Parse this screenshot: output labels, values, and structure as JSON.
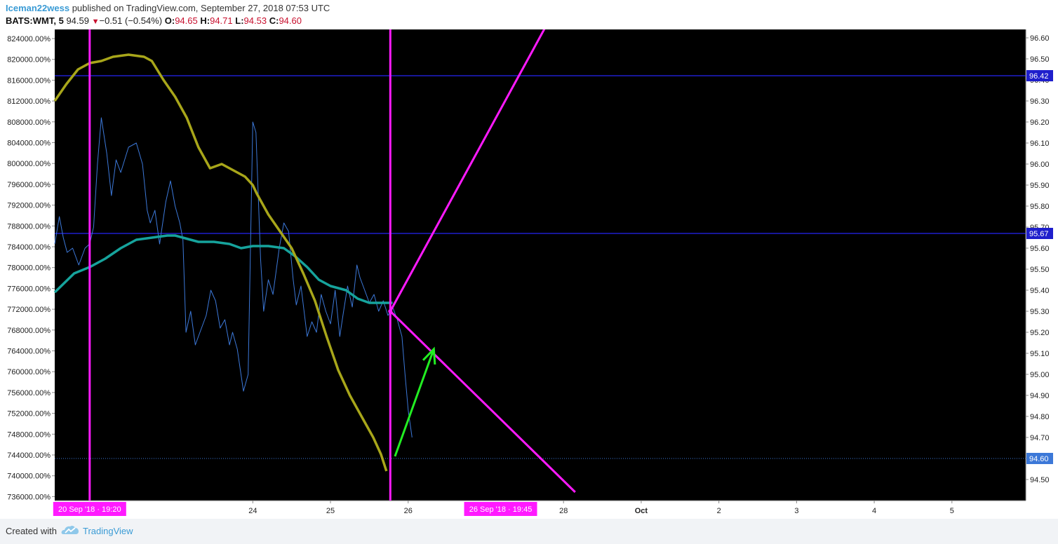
{
  "header": {
    "author": "Iceman22wess",
    "published": " published on TradingView.com, September 27, 2018 07:53 UTC",
    "symbol": "BATS:WMT, 5",
    "price": "94.59",
    "down_arrow": "▼",
    "change": "−0.51 (−0.54%)",
    "o_label": "O:",
    "o_value": "94.65",
    "h_label": "H:",
    "h_value": "94.71",
    "l_label": "L:",
    "l_value": "94.53",
    "c_label": "C:",
    "c_value": "94.60"
  },
  "footer": {
    "created_with": "Created with",
    "brand": "TradingView"
  },
  "colors": {
    "background": "#000000",
    "price_line": "#3c78d8",
    "ma_fast": "#16a39c",
    "ma_slow": "#a8a61a",
    "vertical_lines": "#ff1aff",
    "horizontal_lines": "#1f1fcc",
    "arrow": "#22ee22",
    "author": "#3a9bd5"
  },
  "chart_data": {
    "type": "line",
    "title": "",
    "left_axis": {
      "ticks": [
        "824000.00%",
        "820000.00%",
        "816000.00%",
        "812000.00%",
        "808000.00%",
        "804000.00%",
        "800000.00%",
        "796000.00%",
        "792000.00%",
        "788000.00%",
        "784000.00%",
        "780000.00%",
        "776000.00%",
        "772000.00%",
        "768000.00%",
        "764000.00%",
        "760000.00%",
        "756000.00%",
        "752000.00%",
        "748000.00%",
        "744000.00%",
        "740000.00%",
        "736000.00%"
      ]
    },
    "right_axis": {
      "ylim": [
        94.4,
        96.64
      ],
      "ticks": [
        "96.60",
        "96.50",
        "96.40",
        "96.30",
        "96.20",
        "96.10",
        "96.00",
        "95.90",
        "95.80",
        "95.70",
        "95.60",
        "95.50",
        "95.40",
        "95.30",
        "95.20",
        "95.10",
        "95.00",
        "94.90",
        "94.80",
        "94.70",
        "94.60",
        "94.50"
      ],
      "badges": [
        {
          "label": "96.42",
          "value": 96.42,
          "color": "#1f1fcc"
        },
        {
          "label": "95.67",
          "value": 95.67,
          "color": "#1f1fcc"
        },
        {
          "label": "94.60",
          "value": 94.6,
          "color": "#3c78d8"
        }
      ]
    },
    "x_axis": {
      "ticks": [
        {
          "label": "24",
          "t": 1
        },
        {
          "label": "25",
          "t": 2
        },
        {
          "label": "26",
          "t": 3
        },
        {
          "label": "28",
          "t": 5
        },
        {
          "label": "Oct",
          "t": 6,
          "bold": true
        },
        {
          "label": "2",
          "t": 7
        },
        {
          "label": "3",
          "t": 8
        },
        {
          "label": "4",
          "t": 9
        },
        {
          "label": "5",
          "t": 10
        }
      ],
      "time_badges": [
        {
          "label": "20 Sep '18 · 19:20",
          "t": -1.1
        },
        {
          "label": "26 Sep '18 · 19:45",
          "t": 4.19
        }
      ],
      "xlim": [
        -1.55,
        10.95
      ]
    },
    "series": [
      {
        "name": "",
        "role": "price",
        "points": [
          [
            -1.55,
            95.62
          ],
          [
            -1.49,
            95.75
          ],
          [
            -1.44,
            95.65
          ],
          [
            -1.39,
            95.58
          ],
          [
            -1.32,
            95.6
          ],
          [
            -1.24,
            95.52
          ],
          [
            -1.16,
            95.6
          ],
          [
            -1.1,
            95.62
          ],
          [
            -1.05,
            95.7
          ],
          [
            -1.0,
            96.0
          ],
          [
            -0.95,
            96.22
          ],
          [
            -0.88,
            96.05
          ],
          [
            -0.82,
            95.85
          ],
          [
            -0.76,
            96.02
          ],
          [
            -0.7,
            95.96
          ],
          [
            -0.6,
            96.08
          ],
          [
            -0.5,
            96.1
          ],
          [
            -0.42,
            96.0
          ],
          [
            -0.36,
            95.78
          ],
          [
            -0.32,
            95.72
          ],
          [
            -0.26,
            95.78
          ],
          [
            -0.2,
            95.62
          ],
          [
            -0.12,
            95.82
          ],
          [
            -0.06,
            95.92
          ],
          [
            0.0,
            95.8
          ],
          [
            0.06,
            95.72
          ],
          [
            0.1,
            95.64
          ],
          [
            0.14,
            95.2
          ],
          [
            0.2,
            95.3
          ],
          [
            0.26,
            95.14
          ],
          [
            0.32,
            95.2
          ],
          [
            0.4,
            95.28
          ],
          [
            0.46,
            95.4
          ],
          [
            0.52,
            95.35
          ],
          [
            0.58,
            95.22
          ],
          [
            0.64,
            95.26
          ],
          [
            0.7,
            95.14
          ],
          [
            0.74,
            95.2
          ],
          [
            0.8,
            95.12
          ],
          [
            0.84,
            95.02
          ],
          [
            0.88,
            94.92
          ],
          [
            0.94,
            95.0
          ],
          [
            1.0,
            96.2
          ],
          [
            1.04,
            96.15
          ],
          [
            1.1,
            95.55
          ],
          [
            1.14,
            95.3
          ],
          [
            1.2,
            95.45
          ],
          [
            1.26,
            95.38
          ],
          [
            1.34,
            95.6
          ],
          [
            1.4,
            95.72
          ],
          [
            1.46,
            95.68
          ],
          [
            1.52,
            95.45
          ],
          [
            1.56,
            95.33
          ],
          [
            1.62,
            95.42
          ],
          [
            1.7,
            95.18
          ],
          [
            1.76,
            95.25
          ],
          [
            1.82,
            95.2
          ],
          [
            1.88,
            95.38
          ],
          [
            1.94,
            95.3
          ],
          [
            2.0,
            95.24
          ],
          [
            2.06,
            95.4
          ],
          [
            2.12,
            95.18
          ],
          [
            2.16,
            95.28
          ],
          [
            2.22,
            95.42
          ],
          [
            2.28,
            95.32
          ],
          [
            2.34,
            95.52
          ],
          [
            2.38,
            95.46
          ],
          [
            2.44,
            95.4
          ],
          [
            2.5,
            95.34
          ],
          [
            2.56,
            95.38
          ],
          [
            2.62,
            95.3
          ],
          [
            2.68,
            95.35
          ],
          [
            2.74,
            95.28
          ],
          [
            2.8,
            95.32
          ],
          [
            2.86,
            95.26
          ],
          [
            2.92,
            95.18
          ],
          [
            2.96,
            95.0
          ],
          [
            3.0,
            94.83
          ],
          [
            3.05,
            94.7
          ]
        ]
      },
      {
        "name": "",
        "role": "ma_fast",
        "points": [
          [
            -1.55,
            95.39
          ],
          [
            -1.3,
            95.48
          ],
          [
            -1.1,
            95.51
          ],
          [
            -0.9,
            95.55
          ],
          [
            -0.7,
            95.6
          ],
          [
            -0.5,
            95.64
          ],
          [
            -0.3,
            95.65
          ],
          [
            -0.1,
            95.66
          ],
          [
            0.0,
            95.66
          ],
          [
            0.1,
            95.65
          ],
          [
            0.3,
            95.63
          ],
          [
            0.5,
            95.63
          ],
          [
            0.7,
            95.62
          ],
          [
            0.85,
            95.6
          ],
          [
            1.0,
            95.61
          ],
          [
            1.2,
            95.61
          ],
          [
            1.4,
            95.6
          ],
          [
            1.55,
            95.56
          ],
          [
            1.7,
            95.51
          ],
          [
            1.85,
            95.45
          ],
          [
            2.0,
            95.42
          ],
          [
            2.2,
            95.4
          ],
          [
            2.35,
            95.36
          ],
          [
            2.5,
            95.34
          ],
          [
            2.65,
            95.34
          ],
          [
            2.8,
            95.34
          ]
        ]
      },
      {
        "name": "",
        "role": "ma_slow",
        "points": [
          [
            -1.55,
            96.3
          ],
          [
            -1.4,
            96.38
          ],
          [
            -1.25,
            96.45
          ],
          [
            -1.1,
            96.48
          ],
          [
            -0.95,
            96.49
          ],
          [
            -0.8,
            96.51
          ],
          [
            -0.6,
            96.52
          ],
          [
            -0.4,
            96.51
          ],
          [
            -0.3,
            96.49
          ],
          [
            -0.15,
            96.4
          ],
          [
            0.0,
            96.32
          ],
          [
            0.15,
            96.22
          ],
          [
            0.3,
            96.08
          ],
          [
            0.45,
            95.98
          ],
          [
            0.6,
            96.0
          ],
          [
            0.75,
            95.97
          ],
          [
            0.9,
            95.94
          ],
          [
            1.0,
            95.9
          ],
          [
            1.05,
            95.86
          ],
          [
            1.2,
            95.76
          ],
          [
            1.35,
            95.68
          ],
          [
            1.5,
            95.6
          ],
          [
            1.65,
            95.48
          ],
          [
            1.8,
            95.35
          ],
          [
            1.95,
            95.18
          ],
          [
            2.1,
            95.02
          ],
          [
            2.25,
            94.9
          ],
          [
            2.4,
            94.8
          ],
          [
            2.55,
            94.7
          ],
          [
            2.65,
            94.62
          ],
          [
            2.72,
            94.54
          ]
        ]
      }
    ],
    "annotations": {
      "horizontal_lines": [
        96.42,
        95.67
      ],
      "last_price_line": 94.6,
      "vertical_lines_t": [
        -1.1,
        2.77
      ],
      "fan_origin": [
        2.77,
        95.3
      ],
      "fan_up_end": [
        4.78,
        96.66
      ],
      "fan_down_end": [
        5.15,
        94.44
      ],
      "arrow_from": [
        2.83,
        94.61
      ],
      "arrow_to": [
        3.33,
        95.12
      ]
    }
  }
}
